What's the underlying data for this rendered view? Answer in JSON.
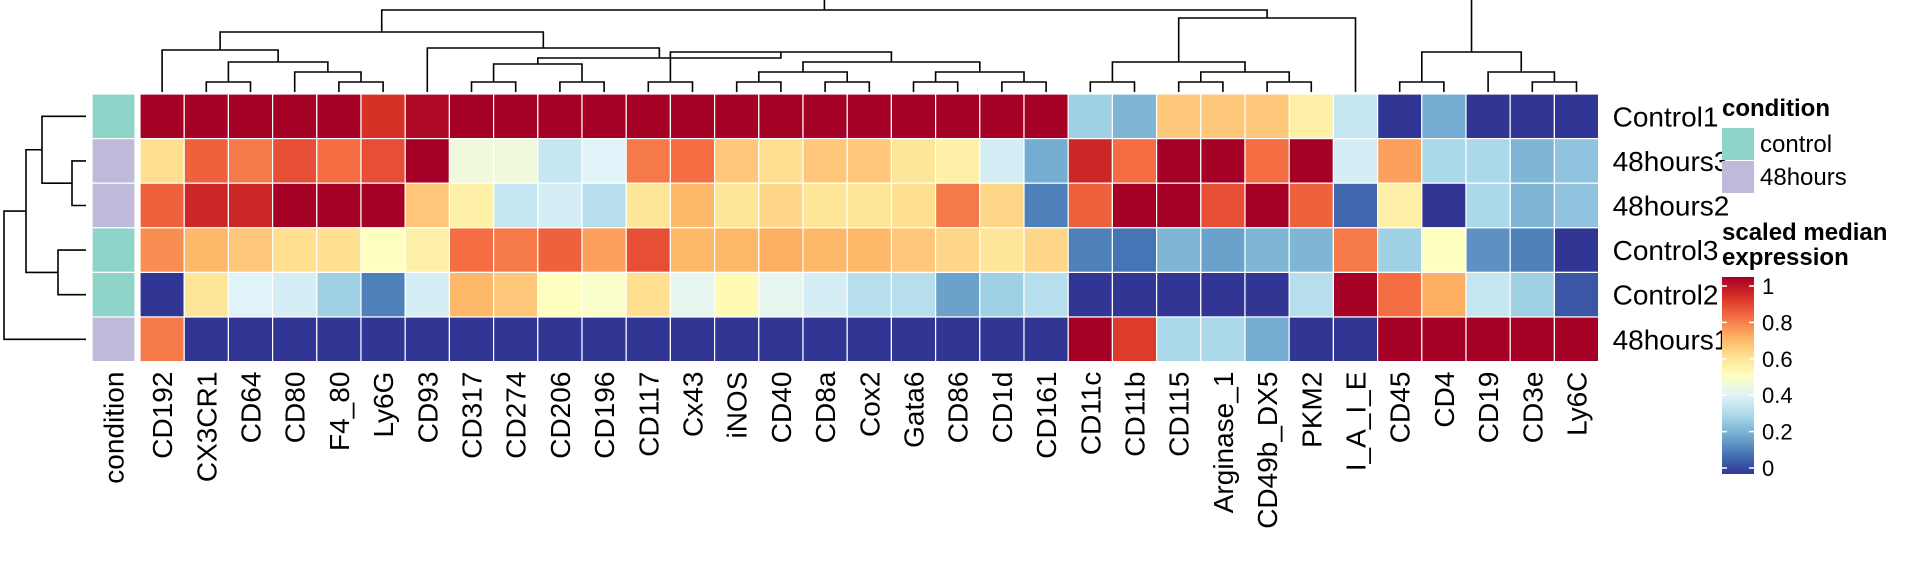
{
  "chart_data": {
    "type": "heatmap",
    "rows": [
      "Control1",
      "48hours3",
      "48hours2",
      "Control3",
      "Control2",
      "48hours1"
    ],
    "columns": [
      "CD192",
      "CX3CR1",
      "CD64",
      "CD80",
      "F4_80",
      "Ly6G",
      "CD93",
      "CD317",
      "CD274",
      "CD206",
      "CD196",
      "CD117",
      "Cx43",
      "iNOS",
      "CD40",
      "CD8a",
      "Cox2",
      "Gata6",
      "CD86",
      "CD1d",
      "CD161",
      "CD11c",
      "CD11b",
      "CD115",
      "Arginase_1",
      "CD49b_DX5",
      "PKM2",
      "I_A_I_E",
      "CD45",
      "CD4",
      "CD19",
      "CD3e",
      "Ly6C"
    ],
    "annotation_column_label": "condition",
    "row_conditions": [
      "control",
      "48hours",
      "48hours",
      "control",
      "control",
      "48hours"
    ],
    "values": [
      [
        1.0,
        1.0,
        1.0,
        1.0,
        1.0,
        0.9,
        0.98,
        1.0,
        1.0,
        1.0,
        1.0,
        1.0,
        1.0,
        1.0,
        1.0,
        1.0,
        1.0,
        1.0,
        1.0,
        1.0,
        1.0,
        0.28,
        0.22,
        0.65,
        0.65,
        0.65,
        0.55,
        0.35,
        0.0,
        0.2,
        0.0,
        0.0,
        0.0
      ],
      [
        0.6,
        0.82,
        0.78,
        0.85,
        0.8,
        0.85,
        1.0,
        0.45,
        0.45,
        0.35,
        0.4,
        0.78,
        0.8,
        0.65,
        0.6,
        0.65,
        0.65,
        0.58,
        0.55,
        0.38,
        0.2,
        0.92,
        0.8,
        1.0,
        1.0,
        0.8,
        1.0,
        0.38,
        0.72,
        0.3,
        0.3,
        0.22,
        0.25
      ],
      [
        0.82,
        0.92,
        0.92,
        1.0,
        1.0,
        1.0,
        0.65,
        0.55,
        0.35,
        0.38,
        0.32,
        0.58,
        0.68,
        0.58,
        0.62,
        0.58,
        0.58,
        0.6,
        0.78,
        0.62,
        0.12,
        0.82,
        1.0,
        1.0,
        0.85,
        1.0,
        0.82,
        0.08,
        0.55,
        0.0,
        0.3,
        0.22,
        0.25
      ],
      [
        0.75,
        0.68,
        0.65,
        0.6,
        0.6,
        0.5,
        0.55,
        0.8,
        0.78,
        0.82,
        0.72,
        0.85,
        0.68,
        0.68,
        0.7,
        0.68,
        0.68,
        0.65,
        0.62,
        0.58,
        0.62,
        0.12,
        0.1,
        0.22,
        0.18,
        0.22,
        0.22,
        0.78,
        0.28,
        0.5,
        0.15,
        0.12,
        0.0
      ],
      [
        0.0,
        0.58,
        0.4,
        0.38,
        0.28,
        0.12,
        0.38,
        0.68,
        0.65,
        0.5,
        0.48,
        0.6,
        0.42,
        0.52,
        0.42,
        0.38,
        0.32,
        0.32,
        0.18,
        0.28,
        0.32,
        0.0,
        0.0,
        0.0,
        0.0,
        0.0,
        0.32,
        1.0,
        0.8,
        0.7,
        0.35,
        0.28,
        0.05
      ],
      [
        0.78,
        0.0,
        0.0,
        0.0,
        0.0,
        0.0,
        0.0,
        0.0,
        0.0,
        0.0,
        0.0,
        0.0,
        0.0,
        0.0,
        0.0,
        0.0,
        0.0,
        0.0,
        0.0,
        0.0,
        0.0,
        1.0,
        0.88,
        0.3,
        0.3,
        0.2,
        0.0,
        0.0,
        1.0,
        1.0,
        1.0,
        1.0,
        1.0
      ]
    ],
    "legend": {
      "condition_title": "condition",
      "condition_items": [
        {
          "label": "control",
          "color": "#8FD4C8"
        },
        {
          "label": "48hours",
          "color": "#BEBADA"
        }
      ],
      "scale_title_line1": "scaled median",
      "scale_title_line2": "expression",
      "scale_ticks": [
        "1",
        "0.8",
        "0.6",
        "0.4",
        "0.2",
        "0"
      ],
      "scale_min": 0,
      "scale_max": 1
    },
    "color_scale": [
      "#313695",
      "#4575B4",
      "#74ADD1",
      "#ABD9E9",
      "#E0F3F8",
      "#FFFFBF",
      "#FEE090",
      "#FDAE61",
      "#F46D43",
      "#D73027",
      "#A50026"
    ],
    "row_dendrogram": true,
    "column_dendrogram": true
  }
}
